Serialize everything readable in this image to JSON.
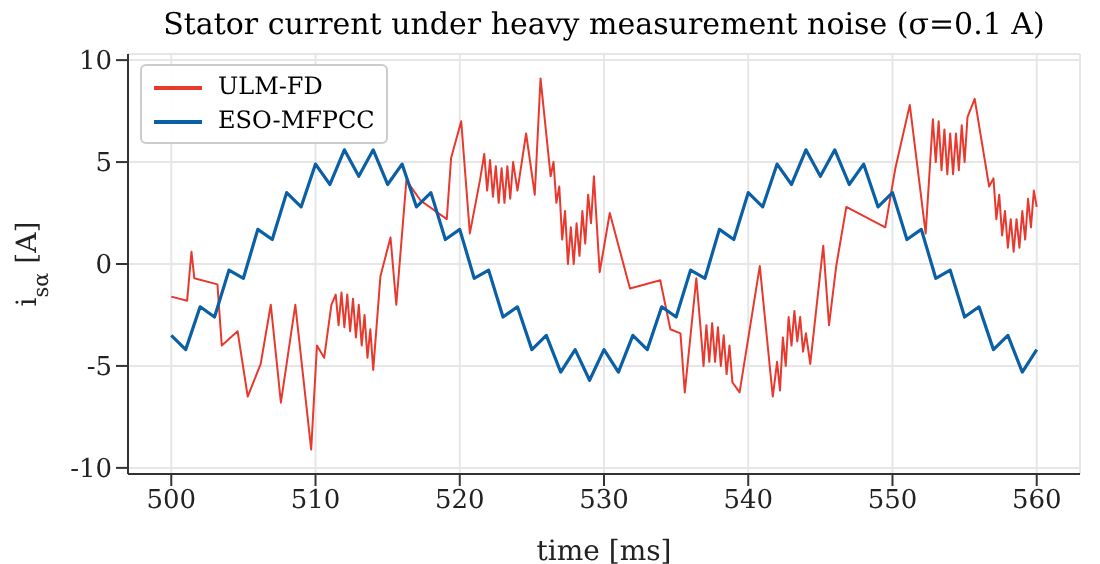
{
  "chart_data": {
    "type": "line",
    "title": "Stator current under heavy measurement noise (σ=0.1 A)",
    "xlabel": "time [ms]",
    "ylabel": "i$_{sα}$ [A]",
    "xlim": [
      497,
      563
    ],
    "xticks": [
      500,
      510,
      520,
      530,
      540,
      550,
      560
    ],
    "ylim": [
      -10.3,
      10.3
    ],
    "yticks": [
      -10,
      -5,
      0,
      5,
      10
    ],
    "grid": true,
    "legend": "top left",
    "line_style": "solid",
    "marker": "none",
    "series": [
      {
        "name": "ULM-FD",
        "color": "#e8392e",
        "x": [
          500,
          501.1,
          501.4,
          501.6,
          503.2,
          503.5,
          504.6,
          505.3,
          506.2,
          506.9,
          507.6,
          508.6,
          509.7,
          510.1,
          510.6,
          511.1,
          511.4,
          511.6,
          511.8,
          512.0,
          512.2,
          512.4,
          512.6,
          512.8,
          513.0,
          513.2,
          513.4,
          513.6,
          513.8,
          514.0,
          514.5,
          515.2,
          515.6,
          516.3,
          517.3,
          519.1,
          519.4,
          520.1,
          520.7,
          521.4,
          521.7,
          521.9,
          522.1,
          522.3,
          522.5,
          522.7,
          522.9,
          523.1,
          523.3,
          523.5,
          523.7,
          524.0,
          524.6,
          525.2,
          525.6,
          526.3,
          526.5,
          526.7,
          526.9,
          527.1,
          527.3,
          527.5,
          527.7,
          527.9,
          528.1,
          528.3,
          528.5,
          528.7,
          528.9,
          529.1,
          529.3,
          529.7,
          530.4,
          531.8,
          533.9,
          534.6,
          535.3,
          535.6,
          536.4,
          536.7,
          536.9,
          537.1,
          537.3,
          537.5,
          537.7,
          537.9,
          538.1,
          538.3,
          538.5,
          538.7,
          538.9,
          539.4,
          540.8,
          541.7,
          542.0,
          542.2,
          542.4,
          542.6,
          542.8,
          543.0,
          543.2,
          543.4,
          543.6,
          543.8,
          544.0,
          544.3,
          545.2,
          545.6,
          546.1,
          546.8,
          549.5,
          550.2,
          551.2,
          552.3,
          552.8,
          553.0,
          553.2,
          553.4,
          553.6,
          553.8,
          554.0,
          554.2,
          554.4,
          554.6,
          554.8,
          555.0,
          555.2,
          555.7,
          556.7,
          557.0,
          557.2,
          557.4,
          557.6,
          557.8,
          558.0,
          558.2,
          558.4,
          558.6,
          558.8,
          559.0,
          559.2,
          559.4,
          559.6,
          559.8,
          560.0
        ],
        "values": [
          -1.6,
          -1.8,
          0.6,
          -0.7,
          -1.0,
          -4.0,
          -3.3,
          -6.5,
          -4.9,
          -2.0,
          -6.8,
          -2.0,
          -9.1,
          -4.0,
          -4.6,
          -2.0,
          -1.5,
          -3.0,
          -1.4,
          -3.1,
          -1.5,
          -3.3,
          -1.7,
          -3.6,
          -2.0,
          -4.0,
          -2.5,
          -4.6,
          -3.2,
          -5.2,
          -0.6,
          1.3,
          -2.0,
          4.1,
          3.1,
          2.2,
          5.2,
          7.0,
          1.5,
          4.1,
          5.4,
          3.6,
          5.1,
          3.3,
          4.8,
          3.0,
          4.7,
          3.0,
          4.8,
          3.2,
          5.0,
          3.6,
          6.4,
          3.4,
          9.1,
          4.3,
          5.0,
          3.0,
          3.8,
          1.2,
          2.6,
          0.0,
          1.8,
          0.0,
          2.0,
          0.4,
          2.6,
          1.0,
          3.4,
          2.0,
          4.3,
          -0.4,
          2.5,
          -1.2,
          -0.8,
          -3.2,
          -3.4,
          -6.3,
          -0.7,
          -3.2,
          -5.0,
          -3.0,
          -4.8,
          -2.9,
          -4.8,
          -3.1,
          -5.0,
          -3.5,
          -5.4,
          -4.0,
          -5.8,
          -6.3,
          -0.1,
          -6.5,
          -4.8,
          -6.2,
          -3.6,
          -5.0,
          -2.6,
          -4.0,
          -2.3,
          -3.8,
          -2.6,
          -4.3,
          -3.4,
          -4.9,
          0.9,
          -3.0,
          -0.1,
          2.8,
          1.8,
          4.7,
          7.8,
          1.5,
          7.1,
          5.0,
          7.0,
          4.6,
          6.6,
          4.4,
          6.4,
          4.4,
          6.4,
          4.6,
          6.8,
          5.0,
          7.2,
          8.1,
          3.8,
          4.2,
          2.2,
          3.4,
          1.4,
          2.6,
          0.8,
          2.2,
          0.6,
          2.2,
          0.8,
          2.6,
          1.2,
          3.2,
          1.8,
          3.6,
          2.8
        ]
      },
      {
        "name": "ESO-MFPCC",
        "color": "#0a5fa5",
        "x": [
          500,
          501,
          502,
          503,
          504,
          505,
          506,
          507,
          508,
          509,
          510,
          511,
          512,
          513,
          514,
          515,
          516,
          517,
          518,
          519,
          520,
          521,
          522,
          523,
          524,
          525,
          526,
          527,
          528,
          529,
          530,
          531,
          532,
          533,
          534,
          535,
          536,
          537,
          538,
          539,
          540,
          541,
          542,
          543,
          544,
          545,
          546,
          547,
          548,
          549,
          550,
          551,
          552,
          553,
          554,
          555,
          556,
          557,
          558,
          559,
          560
        ],
        "values": [
          -3.5,
          -4.2,
          -2.1,
          -2.6,
          -0.3,
          -0.7,
          1.7,
          1.2,
          3.5,
          2.8,
          4.9,
          3.9,
          5.6,
          4.3,
          5.6,
          3.9,
          4.9,
          2.8,
          3.5,
          1.2,
          1.7,
          -0.7,
          -0.3,
          -2.6,
          -2.1,
          -4.2,
          -3.5,
          -5.3,
          -4.2,
          -5.7,
          -4.2,
          -5.3,
          -3.5,
          -4.2,
          -2.1,
          -2.6,
          -0.3,
          -0.7,
          1.7,
          1.2,
          3.5,
          2.8,
          4.9,
          3.9,
          5.6,
          4.3,
          5.6,
          3.9,
          4.9,
          2.8,
          3.5,
          1.2,
          1.7,
          -0.7,
          -0.3,
          -2.6,
          -2.1,
          -4.2,
          -3.5,
          -5.3,
          -4.2
        ]
      }
    ]
  }
}
